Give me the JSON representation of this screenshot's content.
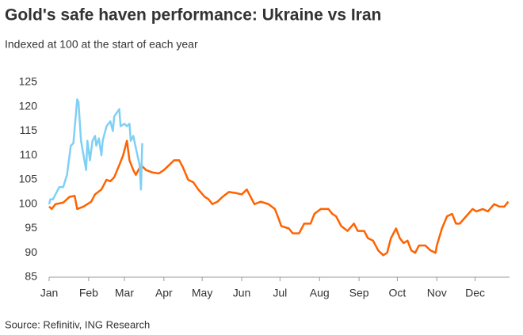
{
  "chart_data": {
    "type": "line",
    "title": "Gold's safe haven performance: Ukraine vs Iran",
    "subtitle": "Indexed at 100 at the start of each year",
    "source": "Source: Refinitiv, ING Research",
    "xlim": [
      0,
      361
    ],
    "xticks": [
      {
        "value": 0,
        "label": "Jan"
      },
      {
        "value": 31,
        "label": "Feb"
      },
      {
        "value": 59,
        "label": "Mar"
      },
      {
        "value": 90,
        "label": "Apr"
      },
      {
        "value": 120,
        "label": "May"
      },
      {
        "value": 151,
        "label": "Jun"
      },
      {
        "value": 181,
        "label": "Jul"
      },
      {
        "value": 212,
        "label": "Aug"
      },
      {
        "value": 243,
        "label": "Sep"
      },
      {
        "value": 273,
        "label": "Oct"
      },
      {
        "value": 304,
        "label": "Nov"
      },
      {
        "value": 334,
        "label": "Dec"
      }
    ],
    "ylim": [
      85,
      125
    ],
    "yticks": [
      85,
      90,
      95,
      100,
      105,
      110,
      115,
      120,
      125
    ],
    "grid": false,
    "series": [
      {
        "color": "#ff6200",
        "x": [
          0,
          2,
          5,
          11,
          16,
          20,
          22,
          27,
          33,
          36,
          41,
          45,
          48,
          51,
          55,
          58,
          61,
          63,
          66,
          68,
          72,
          76,
          81,
          86,
          90,
          94,
          98,
          102,
          105,
          109,
          113,
          117,
          122,
          125,
          128,
          132,
          136,
          141,
          146,
          151,
          155,
          158,
          161,
          166,
          172,
          177,
          180,
          182,
          188,
          191,
          196,
          200,
          205,
          208,
          213,
          219,
          222,
          225,
          229,
          234,
          239,
          242,
          247,
          250,
          254,
          258,
          262,
          265,
          268,
          272,
          275,
          278,
          281,
          284,
          287,
          290,
          295,
          299,
          303,
          304,
          308,
          312,
          316,
          319,
          322,
          327,
          332,
          335,
          340,
          344,
          349,
          353,
          357,
          360
        ],
        "values": [
          99.5,
          99,
          100,
          100.3,
          101.5,
          101.7,
          99,
          99.5,
          100.5,
          102,
          103,
          105,
          104.7,
          105.5,
          108,
          110,
          113,
          109,
          107,
          106,
          108,
          107,
          106.5,
          106.3,
          107,
          108,
          109,
          109,
          107.5,
          105,
          104.5,
          103,
          101.5,
          101,
          100,
          100.5,
          101.5,
          102.5,
          102.3,
          102,
          103,
          101.5,
          100,
          100.5,
          100,
          99,
          97,
          95.5,
          95,
          94,
          94,
          96,
          96,
          98,
          99,
          99,
          98,
          97.5,
          95.5,
          94.5,
          96,
          94.5,
          94.5,
          93,
          92.5,
          90.5,
          89.5,
          90,
          93,
          95,
          93,
          92,
          92.5,
          90.5,
          90,
          91.5,
          91.5,
          90.5,
          90,
          91.5,
          95,
          97.5,
          98,
          96,
          96,
          97.5,
          99,
          98.5,
          99,
          98.5,
          100,
          99.5,
          99.5,
          100.5
        ]
      },
      {
        "color": "#7fd0f5",
        "x": [
          0,
          1,
          3,
          5,
          8,
          11,
          14,
          17,
          19,
          22,
          23,
          25,
          27,
          29,
          30,
          32,
          34,
          36,
          37,
          39,
          41,
          42,
          45,
          48,
          50,
          51,
          55,
          56,
          59,
          61,
          63,
          64,
          66,
          68,
          71,
          72,
          73
        ],
        "values": [
          100,
          101,
          101,
          102,
          103.5,
          103.5,
          106,
          112,
          112.5,
          121.5,
          121,
          113,
          110,
          107,
          113,
          109,
          113,
          114,
          112,
          113.5,
          110,
          113,
          116,
          117,
          115,
          118,
          119.5,
          116,
          116.5,
          116,
          116.5,
          113,
          114,
          111.5,
          108,
          103,
          112.5
        ]
      }
    ]
  }
}
